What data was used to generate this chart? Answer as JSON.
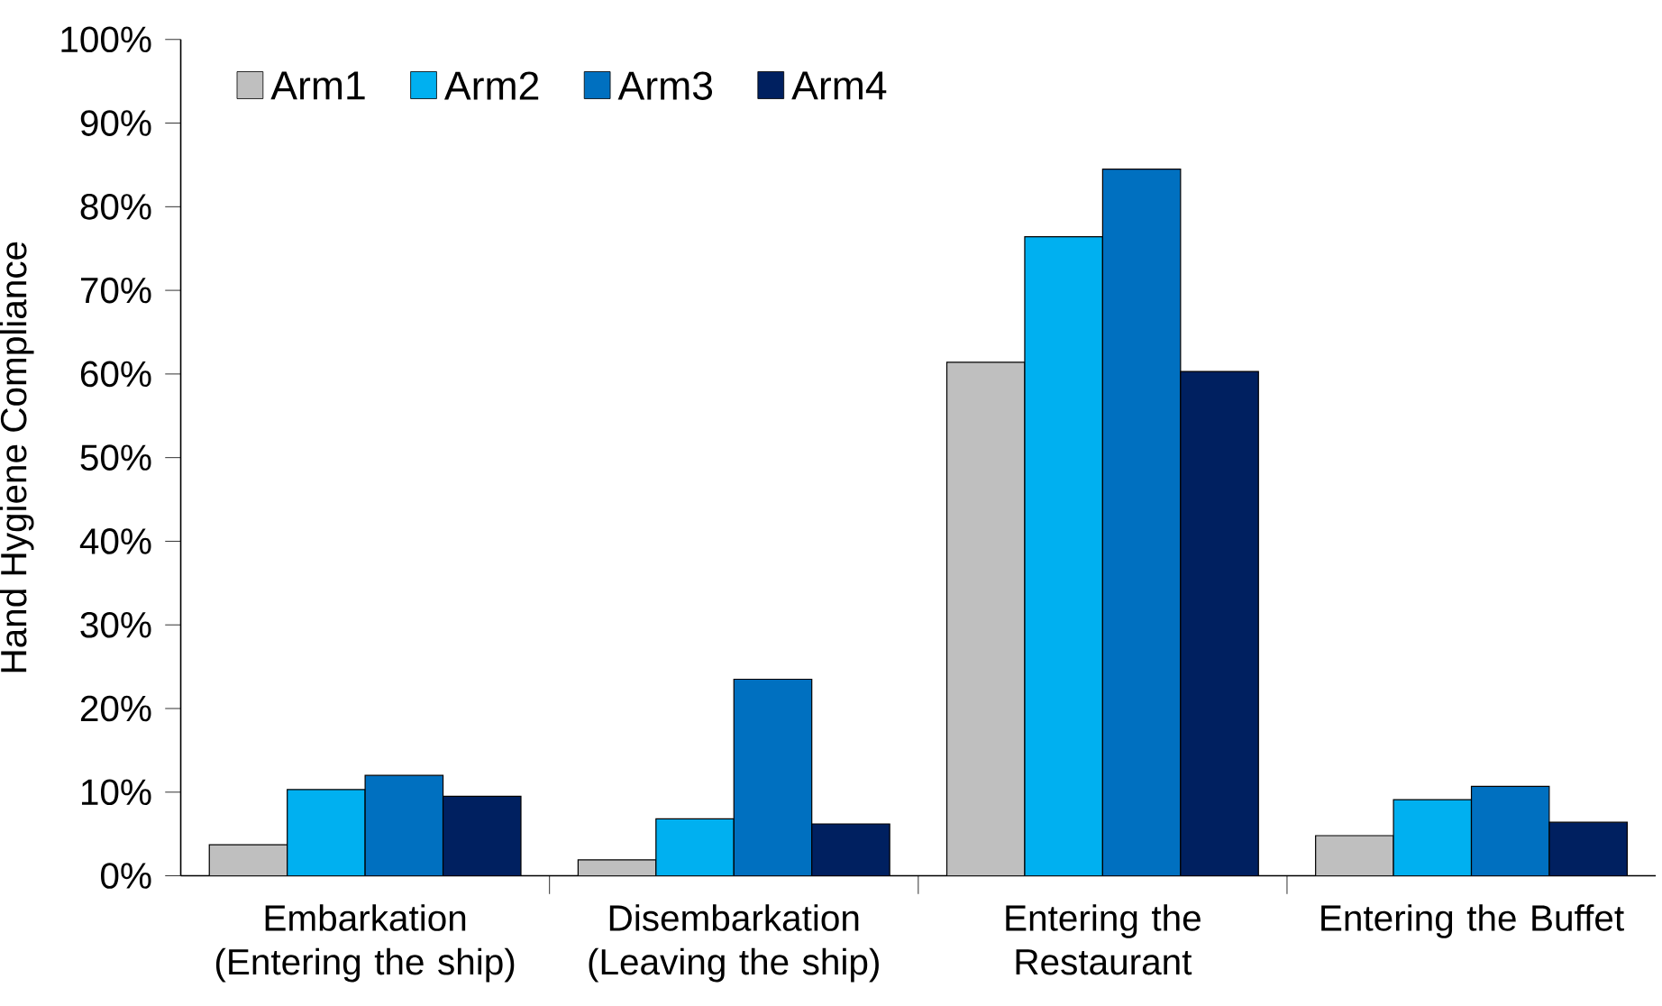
{
  "chart_data": {
    "type": "bar",
    "ylabel": "Hand Hygiene Compliance",
    "categories": [
      "Embarkation (Entering the ship)",
      "Disembarkation (Leaving the ship)",
      "Entering the Restaurant",
      "Entering the Buffet"
    ],
    "series": [
      {
        "name": "Arm1",
        "color": "#bfbfbf",
        "values": [
          3.7,
          1.9,
          61.4,
          4.8
        ]
      },
      {
        "name": "Arm2",
        "color": "#00b0f0",
        "values": [
          10.3,
          6.8,
          76.4,
          9.1
        ]
      },
      {
        "name": "Arm3",
        "color": "#0070c0",
        "values": [
          12.0,
          23.5,
          84.5,
          10.7
        ]
      },
      {
        "name": "Arm4",
        "color": "#002060",
        "values": [
          9.5,
          6.2,
          60.3,
          6.4
        ]
      }
    ],
    "ylim": [
      0,
      100
    ],
    "yticks": [
      {
        "value": 0,
        "label": "0%"
      },
      {
        "value": 10,
        "label": "10%"
      },
      {
        "value": 20,
        "label": "20%"
      },
      {
        "value": 30,
        "label": "30%"
      },
      {
        "value": 40,
        "label": "40%"
      },
      {
        "value": 50,
        "label": "50%"
      },
      {
        "value": 60,
        "label": "60%"
      },
      {
        "value": 70,
        "label": "70%"
      },
      {
        "value": 80,
        "label": "80%"
      },
      {
        "value": 90,
        "label": "90%"
      },
      {
        "value": 100,
        "label": "100%"
      }
    ],
    "grid": false,
    "legend": "top left"
  }
}
